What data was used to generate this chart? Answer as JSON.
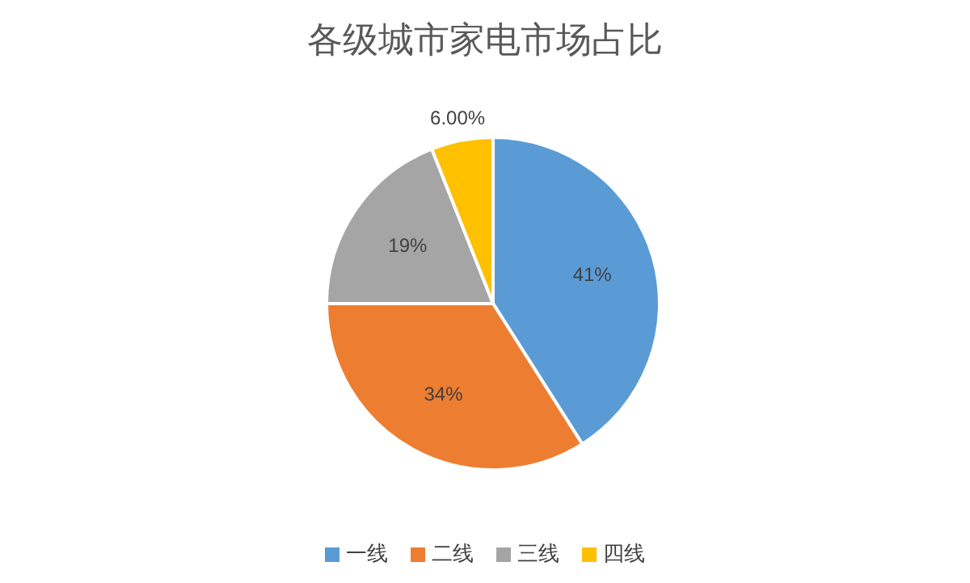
{
  "chart_data": {
    "type": "pie",
    "title": "各级城市家电市场占比",
    "categories": [
      "一线",
      "二线",
      "三线",
      "四线"
    ],
    "values": [
      41,
      34,
      19,
      6
    ],
    "value_labels": [
      "41%",
      "34%",
      "19%",
      "6.00%"
    ],
    "colors": [
      "#5b9bd5",
      "#ed7d31",
      "#a5a5a5",
      "#ffc000"
    ],
    "legend": "bottom"
  }
}
